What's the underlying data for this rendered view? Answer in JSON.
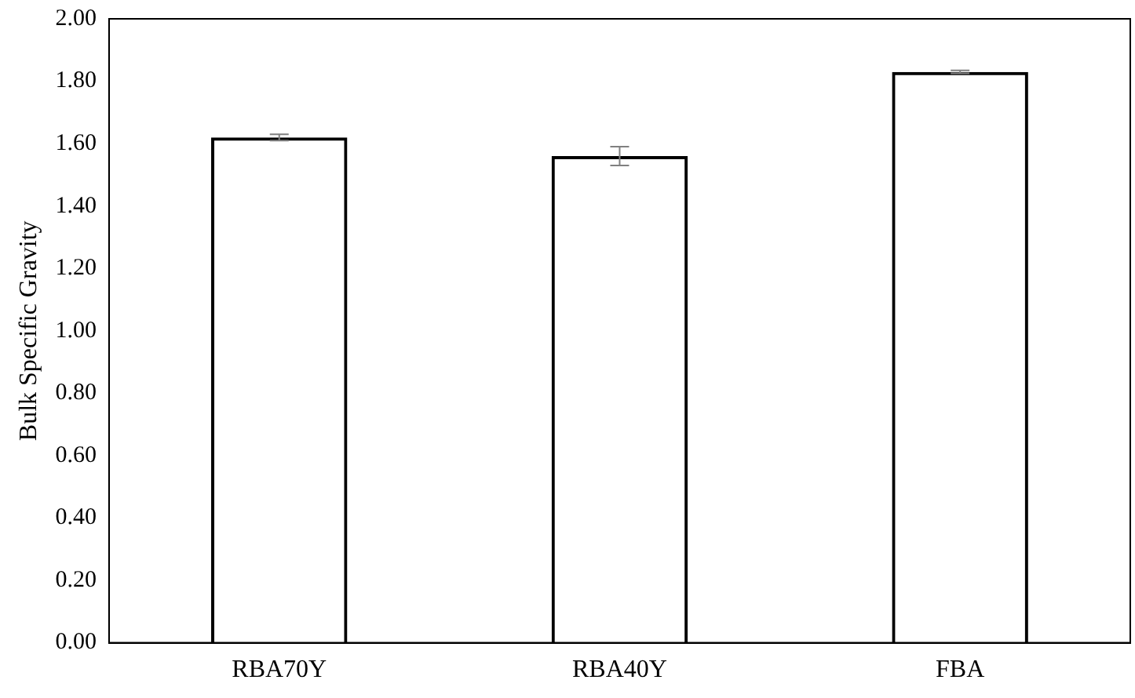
{
  "chart_data": {
    "type": "bar",
    "ylabel": "Bulk Specific Gravity",
    "categories": [
      "RBA70Y",
      "RBA40Y",
      "FBA"
    ],
    "values": [
      1.62,
      1.56,
      1.83
    ],
    "errors": [
      0.01,
      0.03,
      0.005
    ],
    "color": "#000000",
    "ylim": [
      0,
      2
    ],
    "yticks": [
      {
        "value": 0,
        "label": "0.00"
      },
      {
        "value": 0.2,
        "label": "0.20"
      },
      {
        "value": 0.4,
        "label": "0.40"
      },
      {
        "value": 0.6,
        "label": "0.60"
      },
      {
        "value": 0.8,
        "label": "0.80"
      },
      {
        "value": 1,
        "label": "1.00"
      },
      {
        "value": 1.2,
        "label": "1.20"
      },
      {
        "value": 1.4,
        "label": "1.40"
      },
      {
        "value": 1.6,
        "label": "1.60"
      },
      {
        "value": 1.8,
        "label": "1.80"
      },
      {
        "value": 2,
        "label": "2.00"
      }
    ],
    "grid": false,
    "legend": false
  }
}
